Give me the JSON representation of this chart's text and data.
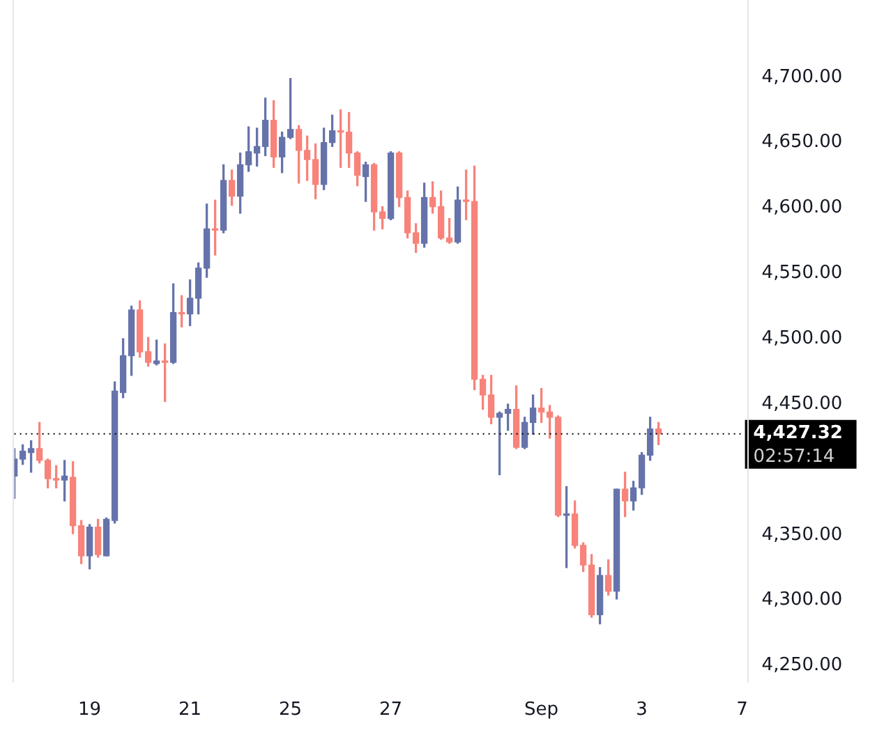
{
  "chart_data": {
    "type": "candlestick",
    "categories": [
      null,
      null,
      null,
      null,
      null,
      null,
      null,
      null,
      null,
      "19",
      null,
      null,
      null,
      null,
      null,
      null,
      null,
      null,
      null,
      null,
      null,
      "21",
      null,
      null,
      null,
      null,
      null,
      null,
      null,
      null,
      null,
      null,
      null,
      "25",
      null,
      null,
      null,
      null,
      null,
      null,
      null,
      null,
      null,
      null,
      null,
      "27",
      null,
      null,
      null,
      null,
      null,
      null,
      null,
      null,
      null,
      null,
      null,
      null,
      null,
      null,
      null,
      null,
      null,
      "Sep",
      null,
      null,
      null,
      null,
      null,
      null,
      null,
      null,
      null,
      null,
      null,
      "3",
      null,
      null,
      null,
      null,
      null,
      null,
      null,
      null,
      null,
      null,
      null,
      "7"
    ],
    "ohlc": [
      [
        4395,
        4416,
        4378,
        4408
      ],
      [
        4408,
        4419,
        4404,
        4414
      ],
      [
        4413,
        4422,
        4398,
        4416
      ],
      [
        4416,
        4436,
        4405,
        4407
      ],
      [
        4407,
        4408,
        4386,
        4393
      ],
      [
        4393,
        4403,
        4386,
        4392
      ],
      [
        4392,
        4407,
        4376,
        4395
      ],
      [
        4394,
        4406,
        4351,
        4357
      ],
      [
        4357,
        4361,
        4328,
        4334
      ],
      [
        4334,
        4358,
        4324,
        4356
      ],
      [
        4356,
        4362,
        4333,
        4335
      ],
      [
        4334,
        4363,
        4334,
        4362
      ],
      [
        4361,
        4467,
        4359,
        4460
      ],
      [
        4459,
        4500,
        4455,
        4487
      ],
      [
        4487,
        4525,
        4472,
        4522
      ],
      [
        4522,
        4529,
        4486,
        4490
      ],
      [
        4490,
        4501,
        4479,
        4482
      ],
      [
        4481,
        4499,
        4480,
        4483
      ],
      [
        4483,
        4496,
        4452,
        4482
      ],
      [
        4482,
        4542,
        4481,
        4520
      ],
      [
        4520,
        4533,
        4509,
        4519
      ],
      [
        4519,
        4545,
        4510,
        4531
      ],
      [
        4531,
        4558,
        4519,
        4554
      ],
      [
        4554,
        4603,
        4547,
        4584
      ],
      [
        4584,
        4606,
        4564,
        4583
      ],
      [
        4583,
        4633,
        4581,
        4621
      ],
      [
        4621,
        4629,
        4602,
        4609
      ],
      [
        4609,
        4642,
        4596,
        4633
      ],
      [
        4633,
        4662,
        4628,
        4643
      ],
      [
        4642,
        4661,
        4632,
        4647
      ],
      [
        4647,
        4684,
        4640,
        4667
      ],
      [
        4667,
        4682,
        4631,
        4639
      ],
      [
        4639,
        4658,
        4627,
        4654
      ],
      [
        4654,
        4699,
        4653,
        4660
      ],
      [
        4660,
        4663,
        4619,
        4644
      ],
      [
        4644,
        4655,
        4621,
        4637
      ],
      [
        4637,
        4649,
        4607,
        4618
      ],
      [
        4618,
        4661,
        4614,
        4650
      ],
      [
        4650,
        4671,
        4647,
        4659
      ],
      [
        4659,
        4675,
        4631,
        4658
      ],
      [
        4658,
        4673,
        4631,
        4642
      ],
      [
        4642,
        4643,
        4617,
        4625
      ],
      [
        4624,
        4635,
        4605,
        4633
      ],
      [
        4633,
        4634,
        4583,
        4597
      ],
      [
        4597,
        4601,
        4584,
        4592
      ],
      [
        4592,
        4643,
        4591,
        4642
      ],
      [
        4642,
        4643,
        4601,
        4608
      ],
      [
        4608,
        4613,
        4577,
        4581
      ],
      [
        4581,
        4588,
        4566,
        4573
      ],
      [
        4573,
        4619,
        4570,
        4608
      ],
      [
        4608,
        4620,
        4596,
        4601
      ],
      [
        4601,
        4613,
        4576,
        4577
      ],
      [
        4577,
        4592,
        4573,
        4574
      ],
      [
        4574,
        4616,
        4573,
        4606
      ],
      [
        4606,
        4629,
        4591,
        4605
      ],
      [
        4605,
        4632,
        4461,
        4469
      ],
      [
        4469,
        4472,
        4446,
        4457
      ],
      [
        4457,
        4472,
        4435,
        4440
      ],
      [
        4440,
        4444,
        4396,
        4443
      ],
      [
        4443,
        4450,
        4430,
        4446
      ],
      [
        4446,
        4464,
        4416,
        4417
      ],
      [
        4417,
        4440,
        4416,
        4436
      ],
      [
        4436,
        4457,
        4427,
        4447
      ],
      [
        4447,
        4462,
        4436,
        4444
      ],
      [
        4444,
        4449,
        4424,
        4440
      ],
      [
        4440,
        4441,
        4364,
        4365
      ],
      [
        4365,
        4387,
        4325,
        4366
      ],
      [
        4366,
        4376,
        4340,
        4342
      ],
      [
        4342,
        4344,
        4322,
        4327
      ],
      [
        4327,
        4335,
        4287,
        4289
      ],
      [
        4289,
        4325,
        4282,
        4319
      ],
      [
        4319,
        4331,
        4304,
        4307
      ],
      [
        4307,
        4385,
        4301,
        4385
      ],
      [
        4385,
        4398,
        4364,
        4376
      ],
      [
        4376,
        4391,
        4369,
        4386
      ],
      [
        4386,
        4413,
        4381,
        4411
      ],
      [
        4411,
        4440,
        4407,
        4431
      ],
      [
        4431,
        4436,
        4419,
        4427.32
      ],
      null,
      null,
      null,
      null,
      null,
      null,
      null,
      null,
      null,
      null
    ],
    "colors": [
      "#6673ab",
      "#6673ab",
      "#6673ab",
      "#f7837a",
      "#f7837a",
      "#f7837a",
      "#6673ab",
      "#f7837a",
      "#f7837a",
      "#6673ab",
      "#f7837a",
      "#6673ab",
      "#6673ab",
      "#6673ab",
      "#6673ab",
      "#f7837a",
      "#f7837a",
      "#6673ab",
      "#f7837a",
      "#6673ab",
      "#f7837a",
      "#6673ab",
      "#6673ab",
      "#6673ab",
      "#f7837a",
      "#6673ab",
      "#f7837a",
      "#6673ab",
      "#6673ab",
      "#6673ab",
      "#6673ab",
      "#f7837a",
      "#6673ab",
      "#6673ab",
      "#f7837a",
      "#f7837a",
      "#f7837a",
      "#6673ab",
      "#6673ab",
      "#f7837a",
      "#f7837a",
      "#f7837a",
      "#6673ab",
      "#f7837a",
      "#f7837a",
      "#6673ab",
      "#f7837a",
      "#f7837a",
      "#f7837a",
      "#6673ab",
      "#f7837a",
      "#f7837a",
      "#f7837a",
      "#6673ab",
      "#f7837a",
      "#f7837a",
      "#f7837a",
      "#f7837a",
      "#6673ab",
      "#6673ab",
      "#f7837a",
      "#6673ab",
      "#6673ab",
      "#f7837a",
      "#f7837a",
      "#f7837a",
      "#6673ab",
      "#f7837a",
      "#f7837a",
      "#f7837a",
      "#6673ab",
      "#f7837a",
      "#6673ab",
      "#f7837a",
      "#6673ab",
      "#6673ab",
      "#6673ab",
      "#f7837a",
      null,
      null,
      null,
      null,
      null,
      null,
      null,
      null,
      null,
      null
    ],
    "ylim": [
      4237,
      4759
    ],
    "yticks": [
      {
        "value": 4250,
        "label": "4,250.00"
      },
      {
        "value": 4300,
        "label": "4,300.00"
      },
      {
        "value": 4350,
        "label": "4,350.00"
      },
      {
        "value": 4450,
        "label": "4,450.00"
      },
      {
        "value": 4500,
        "label": "4,500.00"
      },
      {
        "value": 4550,
        "label": "4,550.00"
      },
      {
        "value": 4600,
        "label": "4,600.00"
      },
      {
        "value": 4650,
        "label": "4,650.00"
      },
      {
        "value": 4700,
        "label": "4,700.00"
      }
    ],
    "ref_lines": [
      {
        "axis": "y",
        "value": 4427.32,
        "label": "4,427.32",
        "color": "#000000",
        "line_style": "dotted"
      }
    ],
    "annotations": [
      "02:57:14"
    ],
    "grid": false,
    "legend": false
  }
}
